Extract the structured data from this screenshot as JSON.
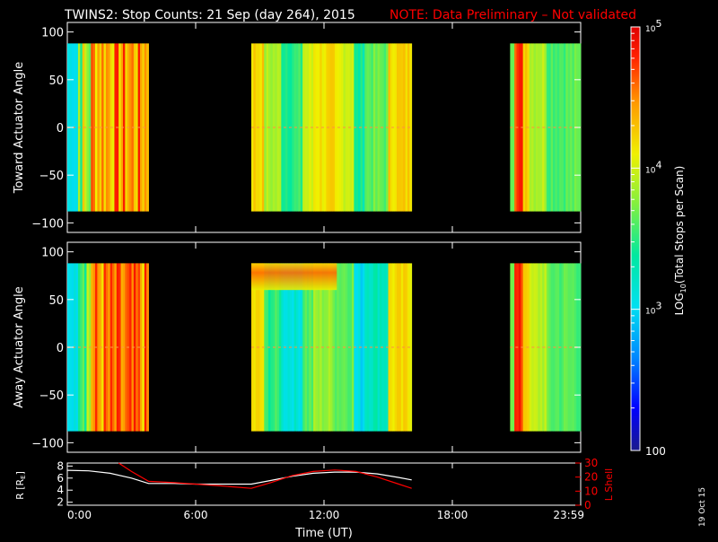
{
  "title": {
    "main": "TWINS2: Stop Counts: 21 Sep (day 264), 2015",
    "note": "NOTE: Data Preliminary – Not validated",
    "main_color": "#ffffff",
    "note_color": "#ff0000"
  },
  "footer_date": "19 Oct 15",
  "chart_data": [
    {
      "type": "heatmap",
      "panel": "toward",
      "ylabel": "Toward Actuator Angle",
      "ylim": [
        -110,
        110
      ],
      "data_ylim": [
        -88,
        88
      ],
      "yticks": [
        "100",
        "50",
        "0",
        "−50",
        "−100"
      ],
      "ytick_values": [
        100,
        50,
        0,
        -50,
        -100
      ],
      "xlim": [
        0,
        24
      ],
      "data_segments_hours": [
        [
          0,
          3.8
        ],
        [
          8.6,
          16.1
        ],
        [
          20.7,
          24
        ]
      ],
      "colorbar": {
        "label": "LOG10(Total Stops per Scan)",
        "range": [
          100,
          100000
        ],
        "scale": "log",
        "ticks": [
          "100",
          "10^3",
          "10^4",
          "10^5"
        ],
        "tick_values": [
          100,
          1000,
          10000,
          100000
        ]
      },
      "approx_log10_counts": {
        "segment1": "3.0 – 4.7 (cyan edge, orange/red striations)",
        "segment2": "3.6 – 4.4 (green/yellow bands, orange near 9:00 and 15:30)",
        "segment3": "3.6 – 4.5 (orange/red near 20:45, yellow/green after)"
      }
    },
    {
      "type": "heatmap",
      "panel": "away",
      "ylabel": "Away Actuator Angle",
      "ylim": [
        -110,
        110
      ],
      "data_ylim": [
        -88,
        88
      ],
      "yticks": [
        "100",
        "50",
        "0",
        "−50",
        "−100"
      ],
      "ytick_values": [
        100,
        50,
        0,
        -50,
        -100
      ],
      "xlim": [
        0,
        24
      ],
      "data_segments_hours": [
        [
          0,
          3.8
        ],
        [
          8.6,
          16.1
        ],
        [
          20.7,
          24
        ]
      ],
      "approx_log10_counts": {
        "segment1": "3.1 – 4.7",
        "segment2": "3.2 – 4.3 (orange band near +75)",
        "segment3": "3.4 – 4.5 (red near 20:45)"
      }
    },
    {
      "type": "line",
      "panel": "orbit",
      "ylabel": "R [RE]",
      "ylabel_main": "R [R",
      "ylabel_sub": "E",
      "ylabel_end": "]",
      "ylim": [
        1.5,
        8.5
      ],
      "yticks": [
        "8",
        "6",
        "4",
        "2"
      ],
      "ytick_values": [
        8,
        6,
        4,
        2
      ],
      "y2label": "L Shell",
      "y2lim": [
        0,
        30
      ],
      "y2ticks": [
        "30",
        "20",
        "10",
        "0"
      ],
      "y2tick_values": [
        30,
        20,
        10,
        0
      ],
      "xlabel": "Time (UT)",
      "xticks": [
        "0:00",
        "6:00",
        "12:00",
        "18:00",
        "23:59"
      ],
      "xtick_values": [
        0,
        6,
        12,
        18,
        24
      ],
      "series": [
        {
          "name": "R",
          "color": "#ffffff",
          "x": [
            0,
            1,
            2,
            3,
            3.8,
            5,
            6,
            7,
            8.6,
            9.5,
            10.5,
            11.5,
            12.5,
            13.5,
            14.5,
            15.5,
            16.1
          ],
          "y": [
            7.3,
            7.2,
            6.8,
            6.0,
            5.1,
            5.1,
            5.0,
            5.0,
            5.0,
            5.6,
            6.3,
            6.8,
            7.0,
            7.0,
            6.7,
            6.1,
            5.7
          ]
        },
        {
          "name": "L Shell",
          "color": "#ff0000",
          "x": [
            2.4,
            3.0,
            3.8,
            5,
            6,
            7,
            8.6,
            9.5,
            10.5,
            11.5,
            12.5,
            13.5,
            14.5,
            15.5,
            16.1
          ],
          "y": [
            30,
            24,
            17,
            16,
            15,
            14,
            12,
            16,
            21,
            24,
            25,
            24,
            20,
            15,
            12
          ]
        }
      ]
    }
  ]
}
